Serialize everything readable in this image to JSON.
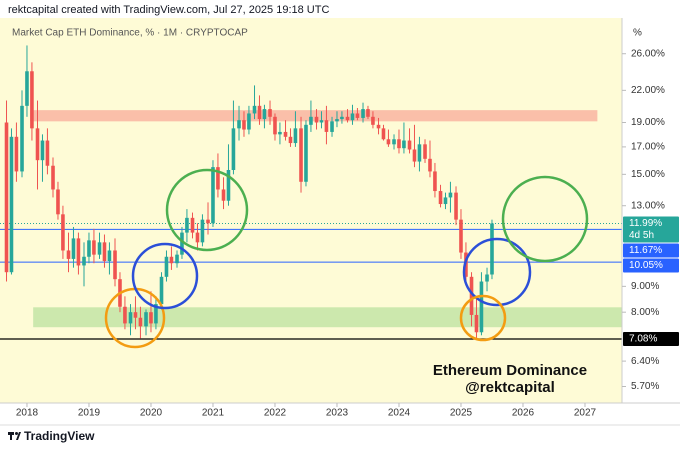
{
  "chart_data": {
    "type": "candlestick",
    "header": "rektcapital created with TradingView.com, Jul 27, 2025 19:18 UTC",
    "title": "Market Cap ETH Dominance, % · 1M · CRYPTOCAP",
    "axis_unit": "%",
    "annotation": [
      "Ethereum Dominance",
      "@rektcapital"
    ],
    "footer": "TradingView",
    "log_scale": true,
    "up_color": "#26a69a",
    "down_color": "#ef5350",
    "xlim": [
      2017.565,
      2027.597
    ],
    "xticks": [
      2018,
      2019,
      2020,
      2021,
      2022,
      2023,
      2024,
      2025,
      2026,
      2027
    ],
    "ylim": [
      5.36,
      30.6
    ],
    "yticks": [
      {
        "value": 26,
        "label": "26.00%"
      },
      {
        "value": 22,
        "label": "22.00%"
      },
      {
        "value": 19,
        "label": "19.00%"
      },
      {
        "value": 17,
        "label": "17.00%"
      },
      {
        "value": 15,
        "label": "15.00%"
      },
      {
        "value": 13,
        "label": "13.00%"
      },
      {
        "value": 9,
        "label": "9.00%"
      },
      {
        "value": 8,
        "label": "8.00%"
      },
      {
        "value": 6.4,
        "label": "6.40%"
      },
      {
        "value": 5.7,
        "label": "5.70%"
      }
    ],
    "x": [
      2017.67,
      2017.75,
      2017.83,
      2017.92,
      2018,
      2018.08,
      2018.17,
      2018.25,
      2018.33,
      2018.42,
      2018.5,
      2018.58,
      2018.67,
      2018.75,
      2018.83,
      2018.92,
      2019,
      2019.08,
      2019.17,
      2019.25,
      2019.33,
      2019.42,
      2019.5,
      2019.58,
      2019.67,
      2019.75,
      2019.83,
      2019.92,
      2020,
      2020.08,
      2020.17,
      2020.25,
      2020.33,
      2020.42,
      2020.5,
      2020.58,
      2020.67,
      2020.75,
      2020.83,
      2020.92,
      2021,
      2021.08,
      2021.17,
      2021.25,
      2021.33,
      2021.42,
      2021.5,
      2021.58,
      2021.67,
      2021.75,
      2021.83,
      2021.92,
      2022,
      2022.08,
      2022.17,
      2022.25,
      2022.33,
      2022.42,
      2022.5,
      2022.58,
      2022.67,
      2022.75,
      2022.83,
      2022.92,
      2023,
      2023.08,
      2023.17,
      2023.25,
      2023.33,
      2023.42,
      2023.5,
      2023.58,
      2023.67,
      2023.75,
      2023.83,
      2023.92,
      2024,
      2024.08,
      2024.17,
      2024.25,
      2024.33,
      2024.42,
      2024.5,
      2024.58,
      2024.67,
      2024.75,
      2024.83,
      2024.92,
      2025,
      2025.08,
      2025.17,
      2025.25,
      2025.33,
      2025.42,
      2025.5
    ],
    "open": [
      19,
      9.6,
      17.8,
      15.2,
      20.5,
      24,
      18.5,
      16,
      17.5,
      15.6,
      14,
      12.5,
      10.6,
      10.2,
      11.2,
      9.9,
      10.3,
      11.1,
      10.4,
      11,
      10.1,
      10.6,
      9.3,
      8.2,
      7.6,
      8.0,
      7.8,
      7.5,
      8.0,
      7.6,
      8.3,
      9.4,
      10.3,
      10.0,
      10.4,
      11.5,
      12.3,
      11.5,
      11,
      12.2,
      12,
      15.5,
      14,
      13.3,
      15.3,
      18.5,
      19.2,
      18.4,
      19.8,
      20.5,
      19.3,
      20.2,
      19.5,
      18,
      18.2,
      17.8,
      17.3,
      18.5,
      14.5,
      18.8,
      19.5,
      19,
      19.2,
      18.2,
      19.1,
      19.3,
      19.5,
      19.2,
      19.8,
      19.4,
      20.2,
      19.5,
      18.8,
      18.5,
      17.6,
      17.2,
      17.6,
      16.9,
      17.5,
      16.8,
      15.9,
      17.2,
      16.1,
      15.2,
      13.9,
      13.1,
      13.5,
      13.8,
      12.2,
      10.5,
      9.4,
      7.9,
      7.3,
      9.2,
      9.5
    ],
    "high": [
      21,
      18.5,
      19,
      22,
      27,
      25,
      21,
      18,
      18.5,
      16.2,
      14.5,
      13,
      11.5,
      11.8,
      11.5,
      11,
      11.5,
      11.7,
      11.5,
      11.4,
      11,
      11.2,
      9.6,
      8.6,
      8.3,
      8.6,
      8.2,
      8.1,
      8.8,
      8.6,
      9.6,
      10.6,
      10.8,
      10.6,
      11.8,
      12.8,
      12.6,
      12,
      12.5,
      13.2,
      16,
      16.5,
      14.8,
      17.2,
      21,
      20.5,
      20,
      20.5,
      22.5,
      21.5,
      20.6,
      21,
      19.8,
      19,
      19.2,
      18.5,
      20,
      19.5,
      19.2,
      21,
      20.2,
      20,
      20.5,
      19.5,
      20,
      20,
      20.2,
      20.6,
      20.3,
      20.8,
      20.5,
      20,
      19.4,
      18.8,
      18.4,
      18,
      18.4,
      19,
      18.5,
      18.8,
      17.8,
      17.6,
      17.5,
      15.8,
      14.3,
      13.8,
      14.5,
      14.2,
      12.8,
      11,
      9.6,
      8.5,
      9.6,
      9.8,
      12.2
    ],
    "low": [
      9.2,
      9.5,
      14.5,
      14.8,
      19.5,
      17.5,
      14,
      14.5,
      15,
      13.5,
      12.2,
      10.2,
      9.6,
      9.8,
      9.5,
      9,
      10,
      10,
      10.2,
      9.8,
      9.5,
      9,
      8,
      7.4,
      7.2,
      7.4,
      7.1,
      7.2,
      7.3,
      7.4,
      8.1,
      9.2,
      9.7,
      9.8,
      10.2,
      11,
      11.2,
      10.6,
      10.8,
      11.4,
      11.8,
      13.5,
      12.8,
      13,
      15,
      17.5,
      17.8,
      18,
      19.3,
      18.8,
      18.5,
      18.8,
      17.5,
      17.2,
      17.5,
      17,
      17,
      13.8,
      14.2,
      18.2,
      18.4,
      18.5,
      17.2,
      17.8,
      18.6,
      18.9,
      19,
      18.8,
      19.2,
      19,
      19.3,
      18.5,
      18,
      17.5,
      17,
      16.8,
      16.5,
      16.5,
      16.5,
      15.5,
      15.2,
      15.8,
      14.8,
      13.5,
      12.9,
      12.8,
      12.6,
      11.9,
      10.2,
      9.1,
      7.5,
      7.1,
      7.2,
      8.8,
      9.3
    ],
    "close": [
      9.6,
      17.8,
      15.2,
      20.5,
      24,
      18.5,
      16,
      17.5,
      15.6,
      14,
      12.5,
      10.6,
      10.2,
      11.2,
      9.9,
      10.3,
      11.1,
      10.4,
      11,
      10.1,
      10.6,
      9.3,
      8.2,
      7.6,
      8.0,
      7.8,
      7.5,
      8.0,
      7.6,
      8.3,
      9.4,
      10.3,
      10.0,
      10.4,
      11.5,
      12.3,
      11.5,
      11,
      12.2,
      12,
      15.5,
      14,
      13.3,
      15.3,
      18.5,
      19.2,
      18.4,
      19.8,
      20.5,
      19.3,
      20.2,
      19.5,
      18,
      18.2,
      17.8,
      17.3,
      18.5,
      14.5,
      18.8,
      19.5,
      19,
      19.2,
      18.2,
      19.1,
      19.3,
      19.5,
      19.2,
      19.8,
      19.4,
      20.2,
      19.5,
      18.8,
      18.5,
      17.6,
      17.2,
      17.6,
      16.9,
      17.5,
      16.8,
      15.9,
      17.2,
      16.1,
      15.2,
      13.9,
      13.1,
      13.5,
      13.8,
      12.2,
      10.5,
      9.4,
      7.9,
      7.3,
      9.2,
      9.5,
      11.99
    ],
    "last": {
      "value": 11.99,
      "label": "11.99%",
      "countdown": "4d 5h",
      "color": "#26a69a"
    },
    "levels": [
      {
        "value": 11.67,
        "label": "11.67%",
        "color": "#2962ff"
      },
      {
        "value": 10.05,
        "label": "10.05%",
        "color": "#2962ff"
      },
      {
        "value": 7.08,
        "label": "7.08%",
        "color": "#000000"
      }
    ],
    "zones": [
      {
        "from": 19.1,
        "to": 20.1,
        "x_from": 2018.05,
        "x_to": 2027.2,
        "color": "#f9b8a4"
      },
      {
        "from": 7.47,
        "to": 8.18,
        "x_from": 2018.1,
        "x_to": 2027.597,
        "color": "#c6e6a8"
      }
    ]
  }
}
